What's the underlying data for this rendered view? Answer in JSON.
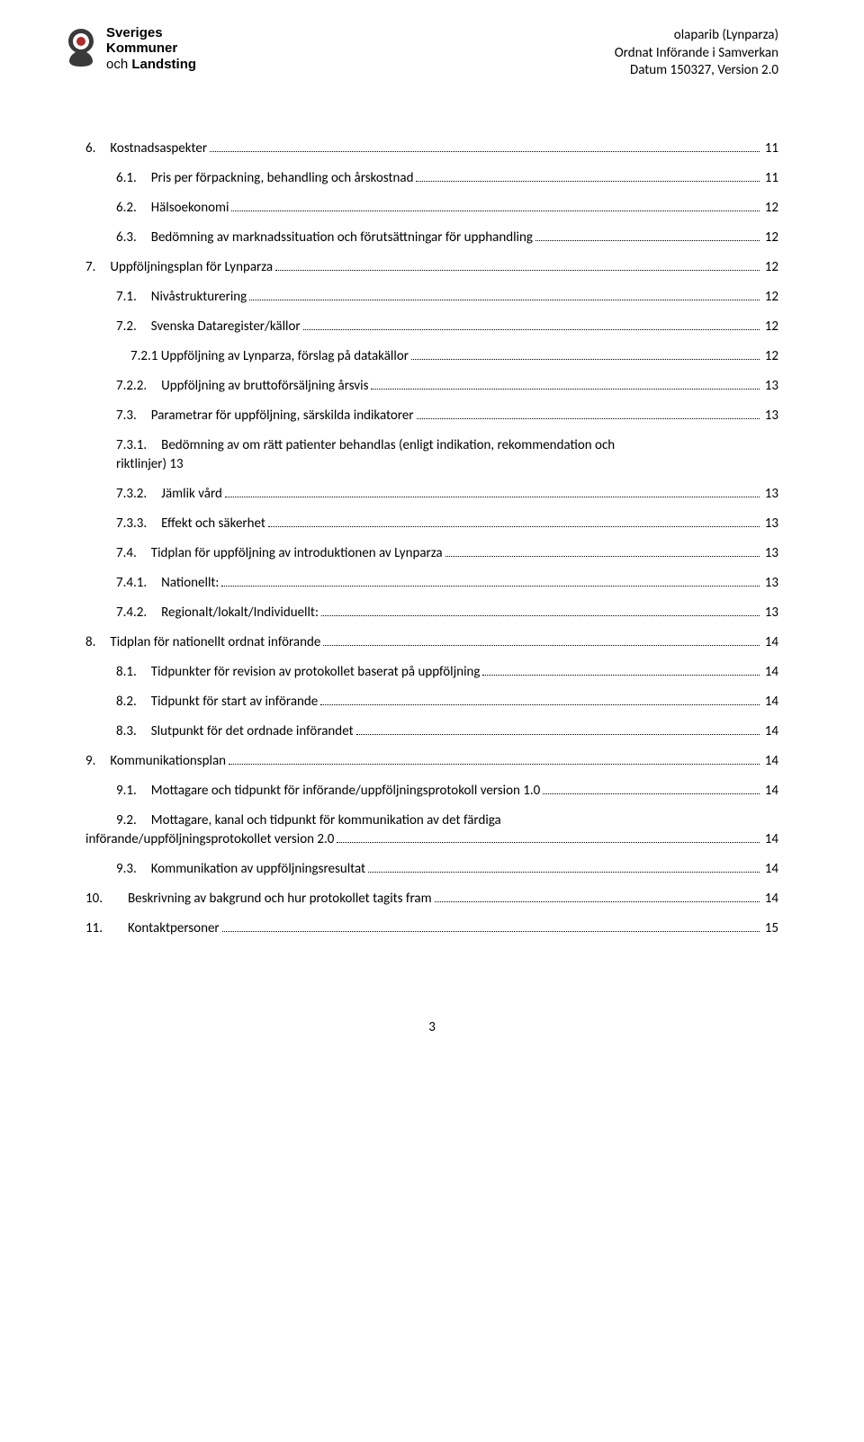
{
  "header": {
    "line1": "olaparib (Lynparza)",
    "line2": "Ordnat Införande i Samverkan",
    "line3": "Datum 150327, Version 2.0"
  },
  "logo": {
    "line1_bold": "Sveriges",
    "line2a_bold": "Kommuner",
    "line3a": "och ",
    "line3b_bold": "Landsting"
  },
  "toc": [
    {
      "lvl": 1,
      "num": "6.",
      "title": "Kostnadsaspekter",
      "page": "11"
    },
    {
      "lvl": 2,
      "num": "6.1.",
      "title": "Pris per förpackning, behandling och årskostnad",
      "page": "11"
    },
    {
      "lvl": 2,
      "num": "6.2.",
      "title": "Hälsoekonomi",
      "page": "12"
    },
    {
      "lvl": 2,
      "num": "6.3.",
      "title": "Bedömning av marknadssituation och förutsättningar för upphandling",
      "page": "12"
    },
    {
      "lvl": 1,
      "num": "7.",
      "title": "Uppföljningsplan för Lynparza",
      "page": "12"
    },
    {
      "lvl": 2,
      "num": "7.1.",
      "title": "Nivåstrukturering",
      "page": "12"
    },
    {
      "lvl": 2,
      "num": "7.2.",
      "title": "Svenska Dataregister/källor",
      "page": "12"
    },
    {
      "lvl": 3,
      "num": "",
      "title": "7.2.1 Uppföljning av Lynparza, förslag på datakällor",
      "page": "12"
    },
    {
      "lvl": 3,
      "num": "7.2.2.",
      "title": "Uppföljning av bruttoförsäljning årsvis",
      "page": "13"
    },
    {
      "lvl": 2,
      "num": "7.3.",
      "title": "Parametrar för uppföljning, särskilda indikatorer",
      "page": "13"
    },
    {
      "lvl": 3,
      "num": "7.3.1.",
      "title_line1": "Bedömning av om rätt patienter behandlas (enligt indikation, rekommendation och",
      "title_line2": "riktlinjer)",
      "page_after_title": "13",
      "multiline": true
    },
    {
      "lvl": 3,
      "num": "7.3.2.",
      "title": "Jämlik vård",
      "page": "13"
    },
    {
      "lvl": 3,
      "num": "7.3.3.",
      "title": "Effekt och säkerhet",
      "page": "13"
    },
    {
      "lvl": 2,
      "num": "7.4.",
      "title": "Tidplan för uppföljning av introduktionen av Lynparza",
      "page": "13"
    },
    {
      "lvl": 3,
      "num": "7.4.1.",
      "title": "Nationellt:",
      "page": "13"
    },
    {
      "lvl": 3,
      "num": "7.4.2.",
      "title": "Regionalt/lokalt/Individuellt:",
      "page": "13"
    },
    {
      "lvl": 1,
      "num": "8.",
      "title": "Tidplan för nationellt ordnat införande",
      "page": "14"
    },
    {
      "lvl": 2,
      "num": "8.1.",
      "title": "Tidpunkter för revision av protokollet baserat på uppföljning",
      "page": "14"
    },
    {
      "lvl": 2,
      "num": "8.2.",
      "title": "Tidpunkt för start av införande",
      "page": "14"
    },
    {
      "lvl": 2,
      "num": "8.3.",
      "title": "Slutpunkt för det ordnade införandet",
      "page": "14"
    },
    {
      "lvl": 1,
      "num": "9.",
      "title": "Kommunikationsplan",
      "page": "14"
    },
    {
      "lvl": 2,
      "num": "9.1.",
      "title": "Mottagare och tidpunkt för införande/uppföljningsprotokoll version 1.0",
      "page": "14"
    },
    {
      "lvl": 2,
      "num": "9.2.",
      "title_line1": "Mottagare, kanal och tidpunkt för kommunikation av det färdiga",
      "title_line2": "införande/uppföljningsprotokollet version 2.0",
      "page": "14",
      "multiline": true,
      "indent2": true
    },
    {
      "lvl": 2,
      "num": "9.3.",
      "title": "Kommunikation av uppföljningsresultat",
      "page": "14"
    },
    {
      "lvl": 1,
      "num": "10.",
      "span": true,
      "title": "Beskrivning av bakgrund och hur protokollet tagits fram",
      "page": "14"
    },
    {
      "lvl": 1,
      "num": "11.",
      "span": true,
      "title": "Kontaktpersoner",
      "page": "15"
    }
  ],
  "pageNumber": "3"
}
